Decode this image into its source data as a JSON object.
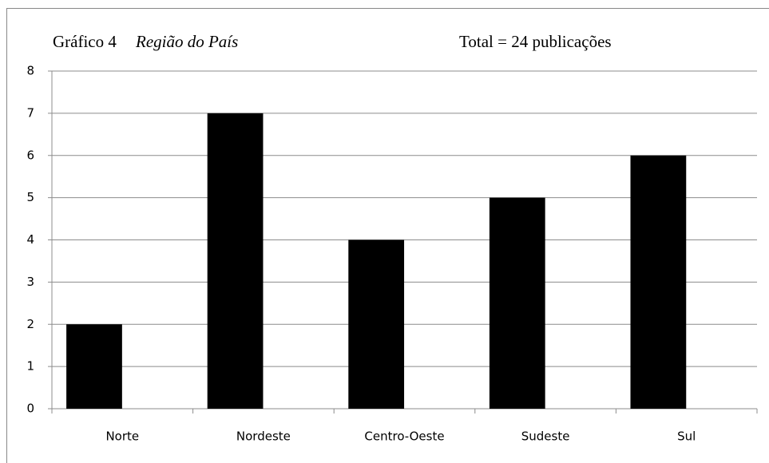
{
  "chart_data": {
    "type": "bar",
    "title": "Gráfico 4",
    "subtitle": "Região do País",
    "annotation": "Total = 24 publicações",
    "categories": [
      "Norte",
      "Nordeste",
      "Centro-Oeste",
      "Sudeste",
      "Sul"
    ],
    "values": [
      2,
      7,
      4,
      5,
      6
    ],
    "color": "#000000",
    "ylim": [
      0,
      8
    ],
    "yticks": [
      0,
      1,
      2,
      3,
      4,
      5,
      6,
      7,
      8
    ],
    "grid": true
  }
}
